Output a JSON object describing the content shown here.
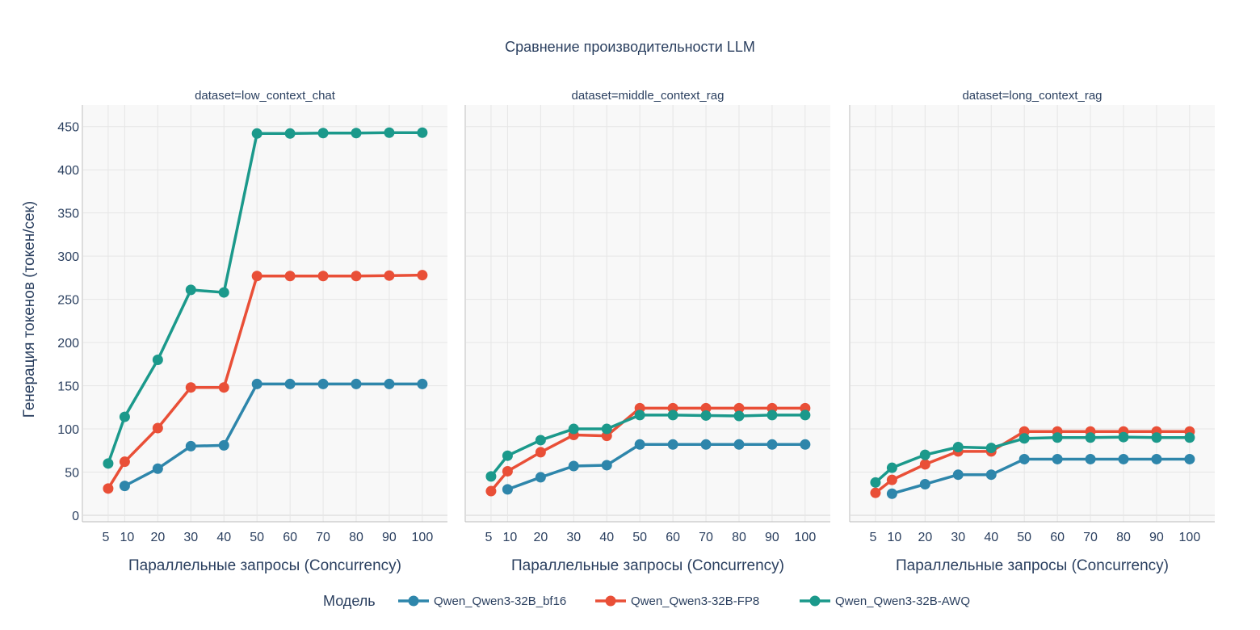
{
  "chart_data": {
    "type": "line",
    "title": "Сравнение производительности LLM",
    "ylabel": "Генерация токенов (токен/сек)",
    "xlabel": "Параллельные запросы (Concurrency)",
    "x_ticks": [
      5,
      10,
      20,
      30,
      40,
      50,
      60,
      70,
      80,
      90,
      100
    ],
    "y_ticks": [
      0,
      50,
      100,
      150,
      200,
      250,
      300,
      350,
      400,
      450
    ],
    "xlim": [
      -2.8,
      107.6
    ],
    "ylim": [
      -7.5,
      475
    ],
    "grid": true,
    "legend": {
      "title": "Модель",
      "placement": "bottom"
    },
    "series_colors": {
      "Qwen_Qwen3-32B_bf16": "#2e86ab",
      "Qwen_Qwen3-32B-FP8": "#e94f37",
      "Qwen_Qwen3-32B-AWQ": "#1b998b"
    },
    "panels": [
      {
        "title": "dataset=low_context_chat",
        "series": [
          {
            "name": "Qwen_Qwen3-32B_bf16",
            "x": [
              10,
              20,
              30,
              40,
              50,
              60,
              70,
              80,
              90,
              100
            ],
            "y": [
              34,
              54,
              80,
              81,
              152,
              152,
              152,
              152,
              152,
              152
            ]
          },
          {
            "name": "Qwen_Qwen3-32B-FP8",
            "x": [
              5,
              10,
              20,
              30,
              40,
              50,
              60,
              70,
              80,
              90,
              100
            ],
            "y": [
              31,
              62,
              101,
              148,
              148,
              277,
              277,
              277,
              277,
              277.5,
              278
            ]
          },
          {
            "name": "Qwen_Qwen3-32B-AWQ",
            "x": [
              5,
              10,
              20,
              30,
              40,
              50,
              60,
              70,
              80,
              90,
              100
            ],
            "y": [
              60,
              114,
              180,
              261,
              258,
              442,
              442,
              442.5,
              442.5,
              443,
              443
            ]
          }
        ]
      },
      {
        "title": "dataset=middle_context_rag",
        "series": [
          {
            "name": "Qwen_Qwen3-32B_bf16",
            "x": [
              10,
              20,
              30,
              40,
              50,
              60,
              70,
              80,
              90,
              100
            ],
            "y": [
              30,
              44,
              57,
              58,
              82,
              82,
              82,
              82,
              82,
              82
            ]
          },
          {
            "name": "Qwen_Qwen3-32B-FP8",
            "x": [
              5,
              10,
              20,
              30,
              40,
              50,
              60,
              70,
              80,
              90,
              100
            ],
            "y": [
              28,
              51,
              73,
              93,
              92,
              124,
              124,
              124,
              124,
              124,
              124
            ]
          },
          {
            "name": "Qwen_Qwen3-32B-AWQ",
            "x": [
              5,
              10,
              20,
              30,
              40,
              50,
              60,
              70,
              80,
              90,
              100
            ],
            "y": [
              45,
              69,
              87,
              100,
              100,
              116,
              116,
              115.5,
              115,
              116,
              116
            ]
          }
        ]
      },
      {
        "title": "dataset=long_context_rag",
        "series": [
          {
            "name": "Qwen_Qwen3-32B_bf16",
            "x": [
              10,
              20,
              30,
              40,
              50,
              60,
              70,
              80,
              90,
              100
            ],
            "y": [
              25,
              36,
              47,
              47,
              65,
              65,
              65,
              65,
              65,
              65
            ]
          },
          {
            "name": "Qwen_Qwen3-32B-FP8",
            "x": [
              5,
              10,
              20,
              30,
              40,
              50,
              60,
              70,
              80,
              90,
              100
            ],
            "y": [
              26,
              41,
              59,
              74,
              74,
              97,
              97,
              97,
              97,
              97,
              97
            ]
          },
          {
            "name": "Qwen_Qwen3-32B-AWQ",
            "x": [
              5,
              10,
              20,
              30,
              40,
              50,
              60,
              70,
              80,
              90,
              100
            ],
            "y": [
              38,
              55,
              70,
              79,
              78,
              89,
              90,
              90,
              90.5,
              90,
              90
            ]
          }
        ]
      }
    ]
  }
}
